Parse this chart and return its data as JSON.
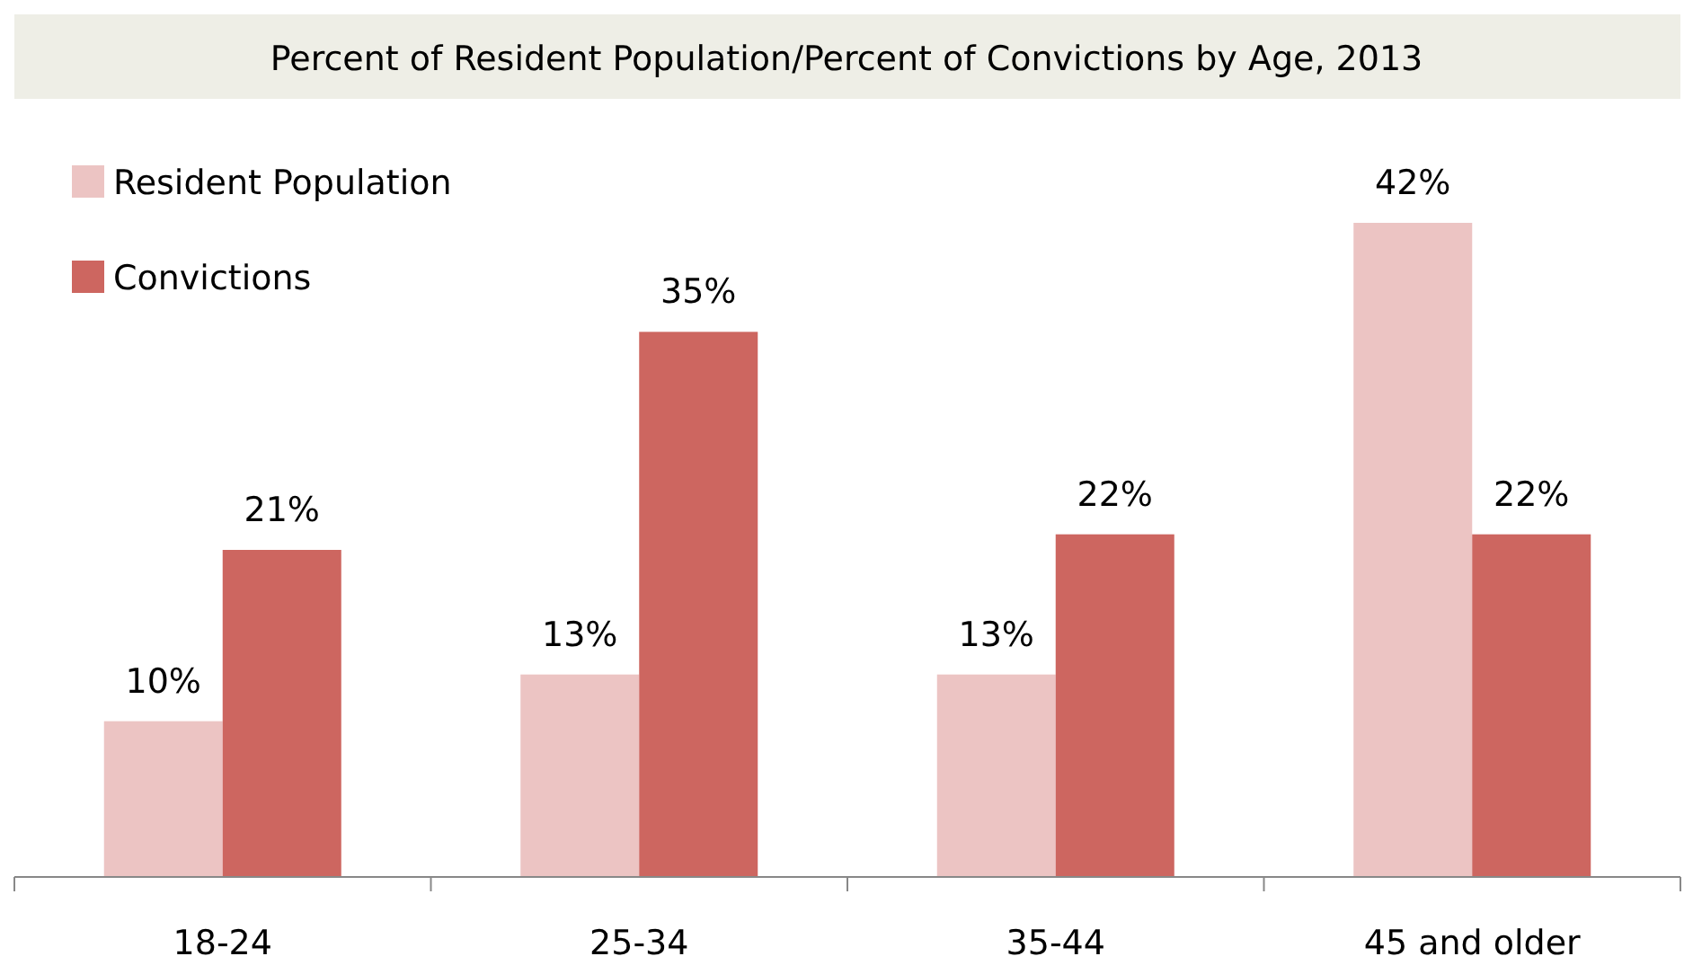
{
  "chart_data": {
    "type": "bar",
    "title": "Percent of Resident Population/Percent of Convictions by Age, 2013",
    "categories": [
      "18-24",
      "25-34",
      "35-44",
      "45 and older"
    ],
    "series": [
      {
        "name": "Resident Population",
        "color": "#ecc4c3",
        "values": [
          10,
          13,
          13,
          42
        ],
        "value_labels": [
          "10%",
          "13%",
          "13%",
          "42%"
        ]
      },
      {
        "name": "Convictions",
        "color": "#cd6660",
        "values": [
          21,
          35,
          22,
          22
        ],
        "value_labels": [
          "21%",
          "35%",
          "22%",
          "22%"
        ]
      }
    ],
    "legend": "top left"
  }
}
